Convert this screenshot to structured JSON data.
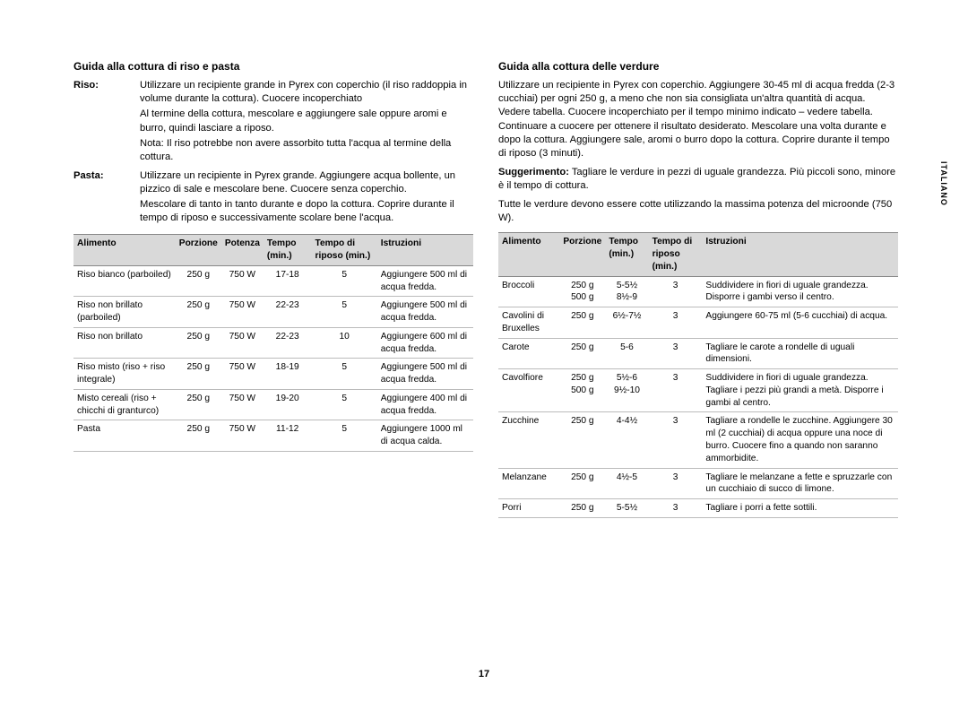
{
  "page_number": "17",
  "side_label": "ITALIANO",
  "left": {
    "title": "Guida alla cottura di riso e pasta",
    "defs": [
      {
        "label": "Riso:",
        "paras": [
          "Utilizzare un recipiente grande in Pyrex con coperchio (il riso raddoppia in volume durante la cottura). Cuocere incoperchiato",
          "Al termine della cottura, mescolare e aggiungere sale oppure aromi e burro, quindi lasciare a riposo.",
          "Nota: Il riso potrebbe non avere assorbito tutta l'acqua al termine della cottura."
        ]
      },
      {
        "label": "Pasta:",
        "paras": [
          "Utilizzare un recipiente in Pyrex grande. Aggiungere acqua bollente, un pizzico di sale e mescolare bene. Cuocere senza coperchio.",
          "Mescolare di tanto in tanto durante e dopo la cottura. Coprire durante il tempo di riposo e successivamente scolare bene l'acqua."
        ]
      }
    ],
    "table": {
      "headers": [
        "Alimento",
        "Porzione",
        "Potenza",
        "Tempo (min.)",
        "Tempo di riposo (min.)",
        "Istruzioni"
      ],
      "rows": [
        [
          "Riso bianco (parboiled)",
          "250 g",
          "750 W",
          "17-18",
          "5",
          "Aggiungere 500 ml di acqua fredda."
        ],
        [
          "Riso non brillato (parboiled)",
          "250 g",
          "750 W",
          "22-23",
          "5",
          "Aggiungere 500 ml di acqua fredda."
        ],
        [
          "Riso non brillato",
          "250 g",
          "750 W",
          "22-23",
          "10",
          "Aggiungere 600 ml di acqua fredda."
        ],
        [
          "Riso misto (riso + riso integrale)",
          "250 g",
          "750 W",
          "18-19",
          "5",
          "Aggiungere 500 ml di acqua fredda."
        ],
        [
          "Misto cereali (riso + chicchi di granturco)",
          "250 g",
          "750 W",
          "19-20",
          "5",
          "Aggiungere 400 ml di acqua fredda."
        ],
        [
          "Pasta",
          "250 g",
          "750 W",
          "11-12",
          "5",
          "Aggiungere 1000 ml di acqua calda."
        ]
      ]
    }
  },
  "right": {
    "title": "Guida alla cottura delle verdure",
    "intro": "Utilizzare un recipiente in Pyrex con coperchio. Aggiungere 30-45 ml di acqua fredda (2-3 cucchiai) per ogni 250 g, a meno che non sia consigliata un'altra quantità di acqua. Vedere tabella. Cuocere incoperchiato per il tempo minimo indicato – vedere tabella. Continuare a cuocere per ottenere il risultato desiderato. Mescolare una volta durante e dopo la cottura. Aggiungere sale, aromi o burro dopo la cottura. Coprire durante il tempo di riposo (3 minuti).",
    "tip_label": "Suggerimento:",
    "tip_text": "Tagliare le verdure in pezzi di uguale grandezza. Più piccoli sono, minore è il tempo di cottura.",
    "note": "Tutte le verdure devono essere cotte utilizzando la massima potenza del microonde (750 W).",
    "table": {
      "headers": [
        "Alimento",
        "Porzione",
        "Tempo (min.)",
        "Tempo di riposo (min.)",
        "Istruzioni"
      ],
      "rows": [
        [
          "Broccoli",
          "250 g\n500 g",
          "5-5½\n8½-9",
          "3",
          "Suddividere in fiori di uguale grandezza. Disporre i gambi verso il centro."
        ],
        [
          "Cavolini di Bruxelles",
          "250 g",
          "6½-7½",
          "3",
          "Aggiungere 60-75 ml (5-6 cucchiai) di acqua."
        ],
        [
          "Carote",
          "250 g",
          "5-6",
          "3",
          "Tagliare le carote a rondelle di uguali dimensioni."
        ],
        [
          "Cavolfiore",
          "250 g\n500 g",
          "5½-6\n9½-10",
          "3",
          "Suddividere in fiori di uguale grandezza. Tagliare i pezzi più grandi a metà. Disporre i gambi al centro."
        ],
        [
          "Zucchine",
          "250 g",
          "4-4½",
          "3",
          "Tagliare a rondelle le zucchine. Aggiungere 30 ml (2 cucchiai) di acqua oppure una noce di burro. Cuocere fino a quando non saranno ammorbidite."
        ],
        [
          "Melanzane",
          "250 g",
          "4½-5",
          "3",
          "Tagliare le melanzane a fette e spruzzarle con un cucchiaio di succo di limone."
        ],
        [
          "Porri",
          "250 g",
          "5-5½",
          "3",
          "Tagliare i porri a fette sottili."
        ]
      ]
    }
  }
}
